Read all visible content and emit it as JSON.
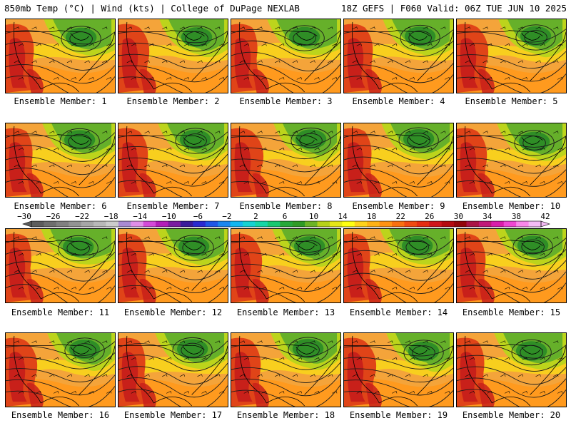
{
  "header": {
    "left": "850mb Temp (°C) | Wind (kts) | College of DuPage NEXLAB",
    "right": "18Z GEFS | F060 Valid: 06Z TUE JUN 10 2025"
  },
  "member_label_prefix": "Ensemble Member: ",
  "members": [
    1,
    2,
    3,
    4,
    5,
    6,
    7,
    8,
    9,
    10,
    11,
    12,
    13,
    14,
    15,
    16,
    17,
    18,
    19,
    20
  ],
  "colorbar": {
    "labels": [
      "−30",
      "−26",
      "−22",
      "−18",
      "−14",
      "−10",
      "−6",
      "−2",
      "2",
      "6",
      "10",
      "14",
      "18",
      "22",
      "26",
      "30",
      "34",
      "38",
      "42"
    ],
    "colors": [
      "#5c5c5c",
      "#6e6e6e",
      "#808080",
      "#939393",
      "#a6a6a6",
      "#b8b8b8",
      "#cccccc",
      "#a98ad2",
      "#e08ee8",
      "#d34ad8",
      "#b21eb8",
      "#7a1ca0",
      "#3a1a9a",
      "#2a2ad0",
      "#1f56e6",
      "#1a86f0",
      "#13b6f0",
      "#16d2d2",
      "#16d6a6",
      "#18c870",
      "#26a83a",
      "#2f9a26",
      "#6cb426",
      "#b6d21a",
      "#e6e616",
      "#ffff12",
      "#ffd21a",
      "#ffb214",
      "#ff9214",
      "#f87010",
      "#f04a12",
      "#e62c12",
      "#d0141c",
      "#b40a10",
      "#92060a",
      "#aa1446",
      "#c01878",
      "#d81eaa",
      "#ee48d2",
      "#f888ea",
      "#f4bcf4"
    ]
  },
  "map_colors": {
    "ocean": "#f4a43a",
    "hot": "#e04418",
    "hottest": "#c8201a",
    "warm": "#ff9a1e",
    "yellow": "#f8d41c",
    "lime": "#bcd41c",
    "green": "#66b02a",
    "dark_green": "#2f8e26"
  }
}
